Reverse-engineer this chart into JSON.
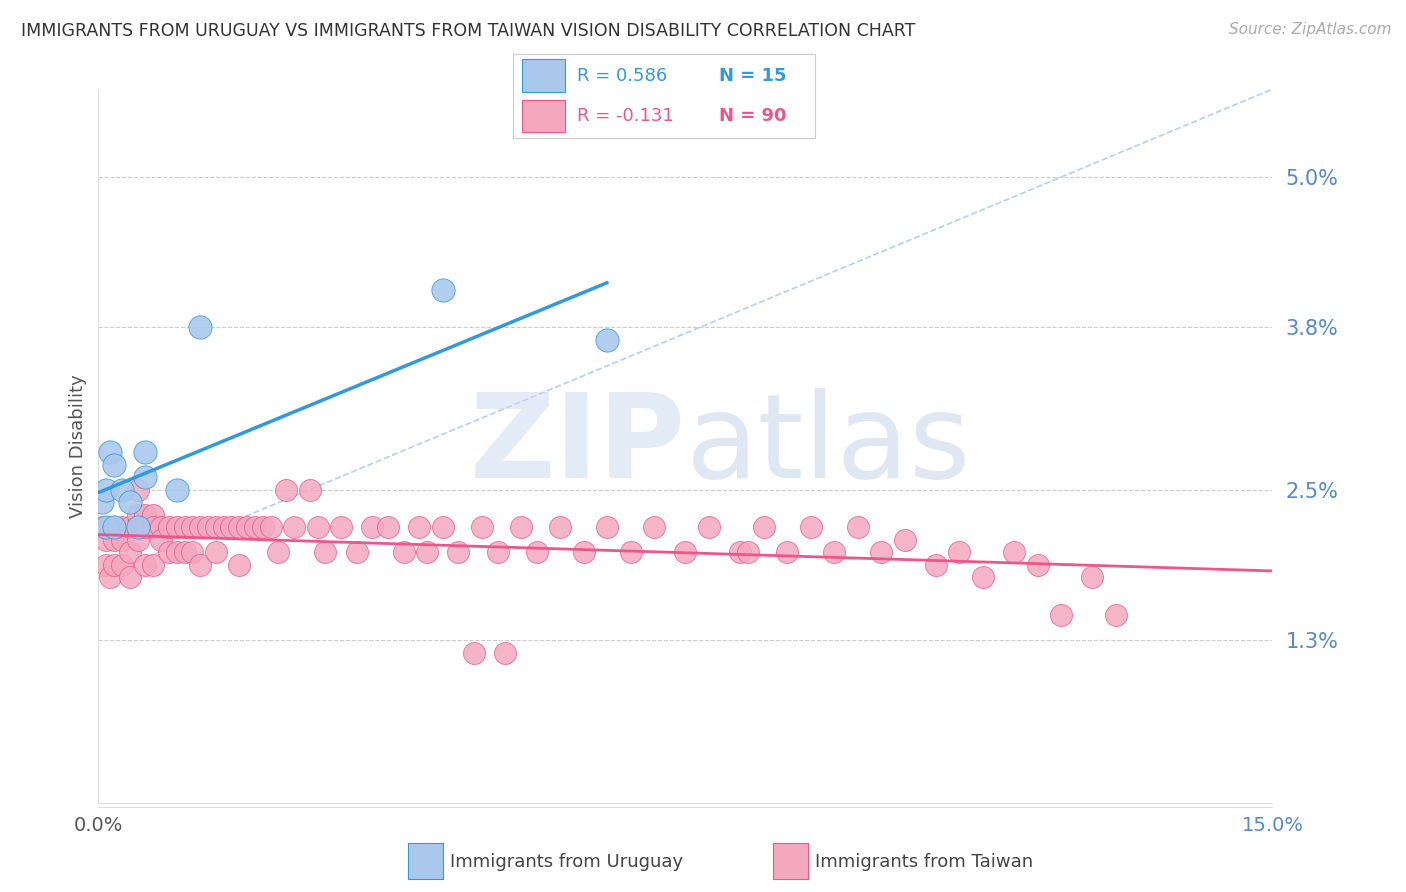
{
  "title": "IMMIGRANTS FROM URUGUAY VS IMMIGRANTS FROM TAIWAN VISION DISABILITY CORRELATION CHART",
  "source": "Source: ZipAtlas.com",
  "ylabel": "Vision Disability",
  "ytick_labels": [
    "5.0%",
    "3.8%",
    "2.5%",
    "1.3%"
  ],
  "ytick_values": [
    0.05,
    0.038,
    0.025,
    0.013
  ],
  "xlim": [
    0.0,
    0.15
  ],
  "ylim": [
    0.0,
    0.057
  ],
  "legend_r_uruguay": "R = 0.586",
  "legend_n_uruguay": "N = 15",
  "legend_r_taiwan": "R = -0.131",
  "legend_n_taiwan": "N = 90",
  "color_uruguay": "#aac8ec",
  "color_taiwan": "#f4a8c0",
  "line_color_uruguay": "#3399dd",
  "line_color_taiwan": "#ee5588",
  "dash_line_color": "#aaccee",
  "watermark_color": "#ccdcf0",
  "background_color": "#ffffff",
  "grid_color": "#cccccc",
  "uruguay_x": [
    0.0005,
    0.001,
    0.001,
    0.0015,
    0.002,
    0.002,
    0.003,
    0.004,
    0.005,
    0.006,
    0.006,
    0.01,
    0.013,
    0.044,
    0.065
  ],
  "uruguay_y": [
    0.024,
    0.022,
    0.025,
    0.028,
    0.022,
    0.027,
    0.025,
    0.024,
    0.022,
    0.028,
    0.026,
    0.025,
    0.038,
    0.041,
    0.037
  ],
  "taiwan_x": [
    0.0005,
    0.001,
    0.001,
    0.0015,
    0.002,
    0.002,
    0.002,
    0.003,
    0.003,
    0.003,
    0.004,
    0.004,
    0.004,
    0.005,
    0.005,
    0.005,
    0.006,
    0.006,
    0.006,
    0.007,
    0.007,
    0.007,
    0.008,
    0.008,
    0.009,
    0.009,
    0.01,
    0.01,
    0.011,
    0.011,
    0.012,
    0.012,
    0.013,
    0.013,
    0.014,
    0.015,
    0.015,
    0.016,
    0.017,
    0.018,
    0.018,
    0.019,
    0.02,
    0.021,
    0.022,
    0.023,
    0.024,
    0.025,
    0.027,
    0.028,
    0.029,
    0.031,
    0.033,
    0.035,
    0.037,
    0.039,
    0.041,
    0.044,
    0.046,
    0.049,
    0.051,
    0.054,
    0.056,
    0.059,
    0.062,
    0.065,
    0.068,
    0.071,
    0.075,
    0.078,
    0.082,
    0.085,
    0.088,
    0.091,
    0.094,
    0.097,
    0.1,
    0.103,
    0.107,
    0.11,
    0.113,
    0.117,
    0.12,
    0.123,
    0.127,
    0.13,
    0.083,
    0.042,
    0.048,
    0.052
  ],
  "taiwan_y": [
    0.022,
    0.021,
    0.019,
    0.018,
    0.022,
    0.021,
    0.019,
    0.022,
    0.021,
    0.019,
    0.022,
    0.02,
    0.018,
    0.025,
    0.023,
    0.021,
    0.023,
    0.022,
    0.019,
    0.023,
    0.022,
    0.019,
    0.022,
    0.021,
    0.022,
    0.02,
    0.022,
    0.02,
    0.022,
    0.02,
    0.022,
    0.02,
    0.022,
    0.019,
    0.022,
    0.022,
    0.02,
    0.022,
    0.022,
    0.022,
    0.019,
    0.022,
    0.022,
    0.022,
    0.022,
    0.02,
    0.025,
    0.022,
    0.025,
    0.022,
    0.02,
    0.022,
    0.02,
    0.022,
    0.022,
    0.02,
    0.022,
    0.022,
    0.02,
    0.022,
    0.02,
    0.022,
    0.02,
    0.022,
    0.02,
    0.022,
    0.02,
    0.022,
    0.02,
    0.022,
    0.02,
    0.022,
    0.02,
    0.022,
    0.02,
    0.022,
    0.02,
    0.021,
    0.019,
    0.02,
    0.018,
    0.02,
    0.019,
    0.015,
    0.018,
    0.015,
    0.02,
    0.02,
    0.012,
    0.012
  ]
}
